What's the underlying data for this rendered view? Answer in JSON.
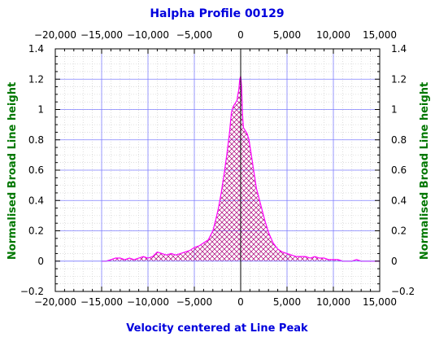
{
  "chart_data": {
    "type": "area",
    "title": "Halpha Profile 00129",
    "xlabel": "Velocity centered at Line Peak",
    "ylabel": "Normalised Broad Line height",
    "xlim": [
      -20000,
      15000
    ],
    "ylim": [
      -0.2,
      1.4
    ],
    "x_ticks": [
      -20000,
      -15000,
      -10000,
      -5000,
      0,
      5000,
      10000,
      15000
    ],
    "x_tick_labels": [
      "−20,000",
      "−15,000",
      "−10,000",
      "−5,000",
      "0",
      "5,000",
      "10,000",
      "15,000"
    ],
    "y_ticks": [
      -0.2,
      0,
      0.2,
      0.4,
      0.6,
      0.8,
      1,
      1.2,
      1.4
    ],
    "y_tick_labels": [
      "−0.2",
      "0",
      "0.2",
      "0.4",
      "0.6",
      "0.8",
      "1",
      "1.2",
      "1.4"
    ],
    "grid": true,
    "series": [
      {
        "color": "#ff00ff",
        "fill_pattern": "crosshatch",
        "fill_color": "#aa0077",
        "x": [
          -15000,
          -14500,
          -14000,
          -13500,
          -13000,
          -12500,
          -12000,
          -11500,
          -11000,
          -10500,
          -10000,
          -9500,
          -9000,
          -8500,
          -8000,
          -7500,
          -7000,
          -6500,
          -6000,
          -5500,
          -5000,
          -4500,
          -4000,
          -3500,
          -3000,
          -2700,
          -2400,
          -2100,
          -1800,
          -1500,
          -1200,
          -1000,
          -800,
          -600,
          -400,
          -300,
          -200,
          -100,
          0,
          100,
          200,
          300,
          500,
          700,
          900,
          1100,
          1300,
          1500,
          1700,
          2000,
          2300,
          2600,
          3000,
          3500,
          4000,
          4500,
          5000,
          5500,
          6000,
          6500,
          7000,
          7500,
          8000,
          8500,
          9000,
          9500,
          10000,
          10500,
          11000,
          11500,
          12000,
          12500,
          13000,
          13500,
          14000,
          14500,
          15000
        ],
        "y": [
          0.0,
          0.0,
          0.01,
          0.02,
          0.02,
          0.01,
          0.02,
          0.01,
          0.02,
          0.03,
          0.02,
          0.03,
          0.06,
          0.05,
          0.04,
          0.05,
          0.04,
          0.05,
          0.06,
          0.07,
          0.09,
          0.1,
          0.12,
          0.14,
          0.2,
          0.27,
          0.35,
          0.45,
          0.57,
          0.7,
          0.85,
          0.98,
          1.02,
          1.04,
          1.06,
          1.1,
          1.13,
          1.2,
          1.22,
          1.15,
          0.96,
          0.88,
          0.86,
          0.84,
          0.8,
          0.72,
          0.64,
          0.56,
          0.48,
          0.41,
          0.34,
          0.27,
          0.19,
          0.12,
          0.08,
          0.06,
          0.05,
          0.04,
          0.03,
          0.03,
          0.03,
          0.02,
          0.03,
          0.02,
          0.02,
          0.01,
          0.01,
          0.01,
          0.0,
          0.0,
          0.0,
          0.01,
          0.0,
          0.0,
          0.0,
          0.0,
          0.0
        ]
      }
    ]
  }
}
